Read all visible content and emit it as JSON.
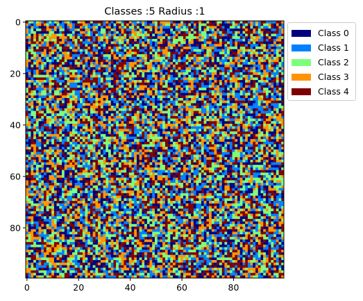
{
  "chart_data": {
    "type": "heatmap",
    "title": "Classes :5 Radius :1",
    "grid_size": 100,
    "x_ticks": [
      0,
      20,
      40,
      60,
      80
    ],
    "y_ticks": [
      0,
      20,
      40,
      60,
      80
    ],
    "xlim": [
      -0.5,
      99.5
    ],
    "ylim": [
      99.5,
      -0.5
    ],
    "grid": false,
    "colormap": "jet",
    "class_fractions": [
      0.2,
      0.2,
      0.2,
      0.2,
      0.2
    ],
    "legend_placement": "outside top-right",
    "legend": [
      {
        "label": "Class 0",
        "color": "#00007f"
      },
      {
        "label": "Class 1",
        "color": "#0080ff"
      },
      {
        "label": "Class 2",
        "color": "#7dff7a"
      },
      {
        "label": "Class 3",
        "color": "#ff9400"
      },
      {
        "label": "Class 4",
        "color": "#7f0000"
      }
    ]
  }
}
